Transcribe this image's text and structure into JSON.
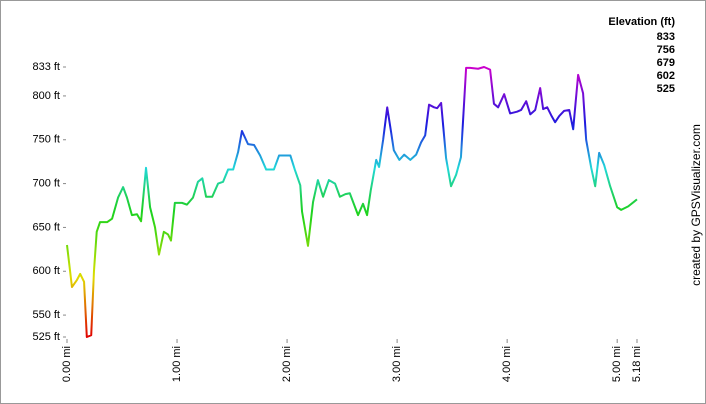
{
  "chart_data": {
    "type": "line",
    "annotation": "created by GPSVisualizer.com",
    "legend": {
      "title": "Elevation (ft)",
      "values": [
        833,
        756,
        679,
        602,
        525
      ],
      "colors": [
        "#cc00cc",
        "#2040e0",
        "#20d040",
        "#c8e000",
        "#e00000"
      ]
    },
    "x": [
      0,
      0.045,
      0.09,
      0.12,
      0.155,
      0.18,
      0.22,
      0.245,
      0.27,
      0.3,
      0.364,
      0.41,
      0.464,
      0.51,
      0.545,
      0.59,
      0.636,
      0.673,
      0.718,
      0.755,
      0.8,
      0.836,
      0.88,
      0.918,
      0.945,
      0.98,
      1.045,
      1.09,
      1.145,
      1.19,
      1.23,
      1.264,
      1.32,
      1.373,
      1.418,
      1.464,
      1.51,
      1.555,
      1.59,
      1.645,
      1.7,
      1.755,
      1.81,
      1.88,
      1.927,
      2.03,
      2.07,
      2.12,
      2.136,
      2.19,
      2.236,
      2.28,
      2.327,
      2.38,
      2.436,
      2.48,
      2.53,
      2.57,
      2.645,
      2.69,
      2.727,
      2.76,
      2.81,
      2.836,
      2.873,
      2.91,
      2.945,
      2.97,
      3.02,
      3.064,
      3.12,
      3.173,
      3.218,
      3.255,
      3.29,
      3.336,
      3.364,
      3.4,
      3.445,
      3.49,
      3.536,
      3.58,
      3.627,
      3.664,
      3.736,
      3.79,
      3.845,
      3.88,
      3.918,
      3.973,
      4.027,
      4.09,
      4.127,
      4.173,
      4.21,
      4.255,
      4.3,
      4.327,
      4.364,
      4.4,
      4.436,
      4.473,
      4.518,
      4.564,
      4.6,
      4.645,
      4.69,
      4.718,
      4.764,
      4.8,
      4.836,
      4.882,
      4.936,
      5,
      5.036,
      5.1,
      5.18
    ],
    "series": [
      {
        "values": [
          630,
          582,
          590,
          597,
          588,
          525,
          527,
          600,
          645,
          656,
          656,
          660,
          684,
          696,
          684,
          664,
          665,
          657,
          718,
          673,
          650,
          619,
          645,
          642,
          635,
          678,
          678,
          676,
          684,
          702,
          706,
          685,
          685,
          700,
          702,
          716,
          716,
          736,
          760,
          745,
          744,
          732,
          716,
          716,
          732,
          732,
          716,
          698,
          668,
          629,
          679,
          704,
          685,
          704,
          700,
          685,
          688,
          689,
          664,
          677,
          664,
          692,
          727,
          719,
          750,
          787,
          759,
          738,
          727,
          733,
          727,
          733,
          747,
          755,
          790,
          787,
          786,
          792,
          729,
          697,
          710,
          730,
          832,
          832,
          831,
          833,
          830,
          791,
          787,
          802,
          780,
          782,
          784,
          794,
          779,
          784,
          809,
          785,
          787,
          778,
          770,
          777,
          783,
          784,
          762,
          824,
          803,
          750,
          718,
          697,
          735,
          721,
          697,
          673,
          670,
          674,
          682
        ]
      }
    ],
    "xlim": [
      0,
      5.18
    ],
    "ylim": [
      525,
      833
    ],
    "xticks": [
      {
        "value": 0,
        "label": "0.00 mi"
      },
      {
        "value": 1,
        "label": "1.00 mi"
      },
      {
        "value": 2,
        "label": "2.00 mi"
      },
      {
        "value": 3,
        "label": "3.00 mi"
      },
      {
        "value": 4,
        "label": "4.00 mi"
      },
      {
        "value": 5,
        "label": "5.00 mi"
      },
      {
        "value": 5.18,
        "label": "5.18 mi"
      }
    ],
    "yticks": [
      {
        "value": 525,
        "label": "525 ft"
      },
      {
        "value": 550,
        "label": "550 ft"
      },
      {
        "value": 600,
        "label": "600 ft"
      },
      {
        "value": 650,
        "label": "650 ft"
      },
      {
        "value": 700,
        "label": "700 ft"
      },
      {
        "value": 750,
        "label": "750 ft"
      },
      {
        "value": 800,
        "label": "800 ft"
      },
      {
        "value": 833,
        "label": "833 ft"
      }
    ]
  }
}
